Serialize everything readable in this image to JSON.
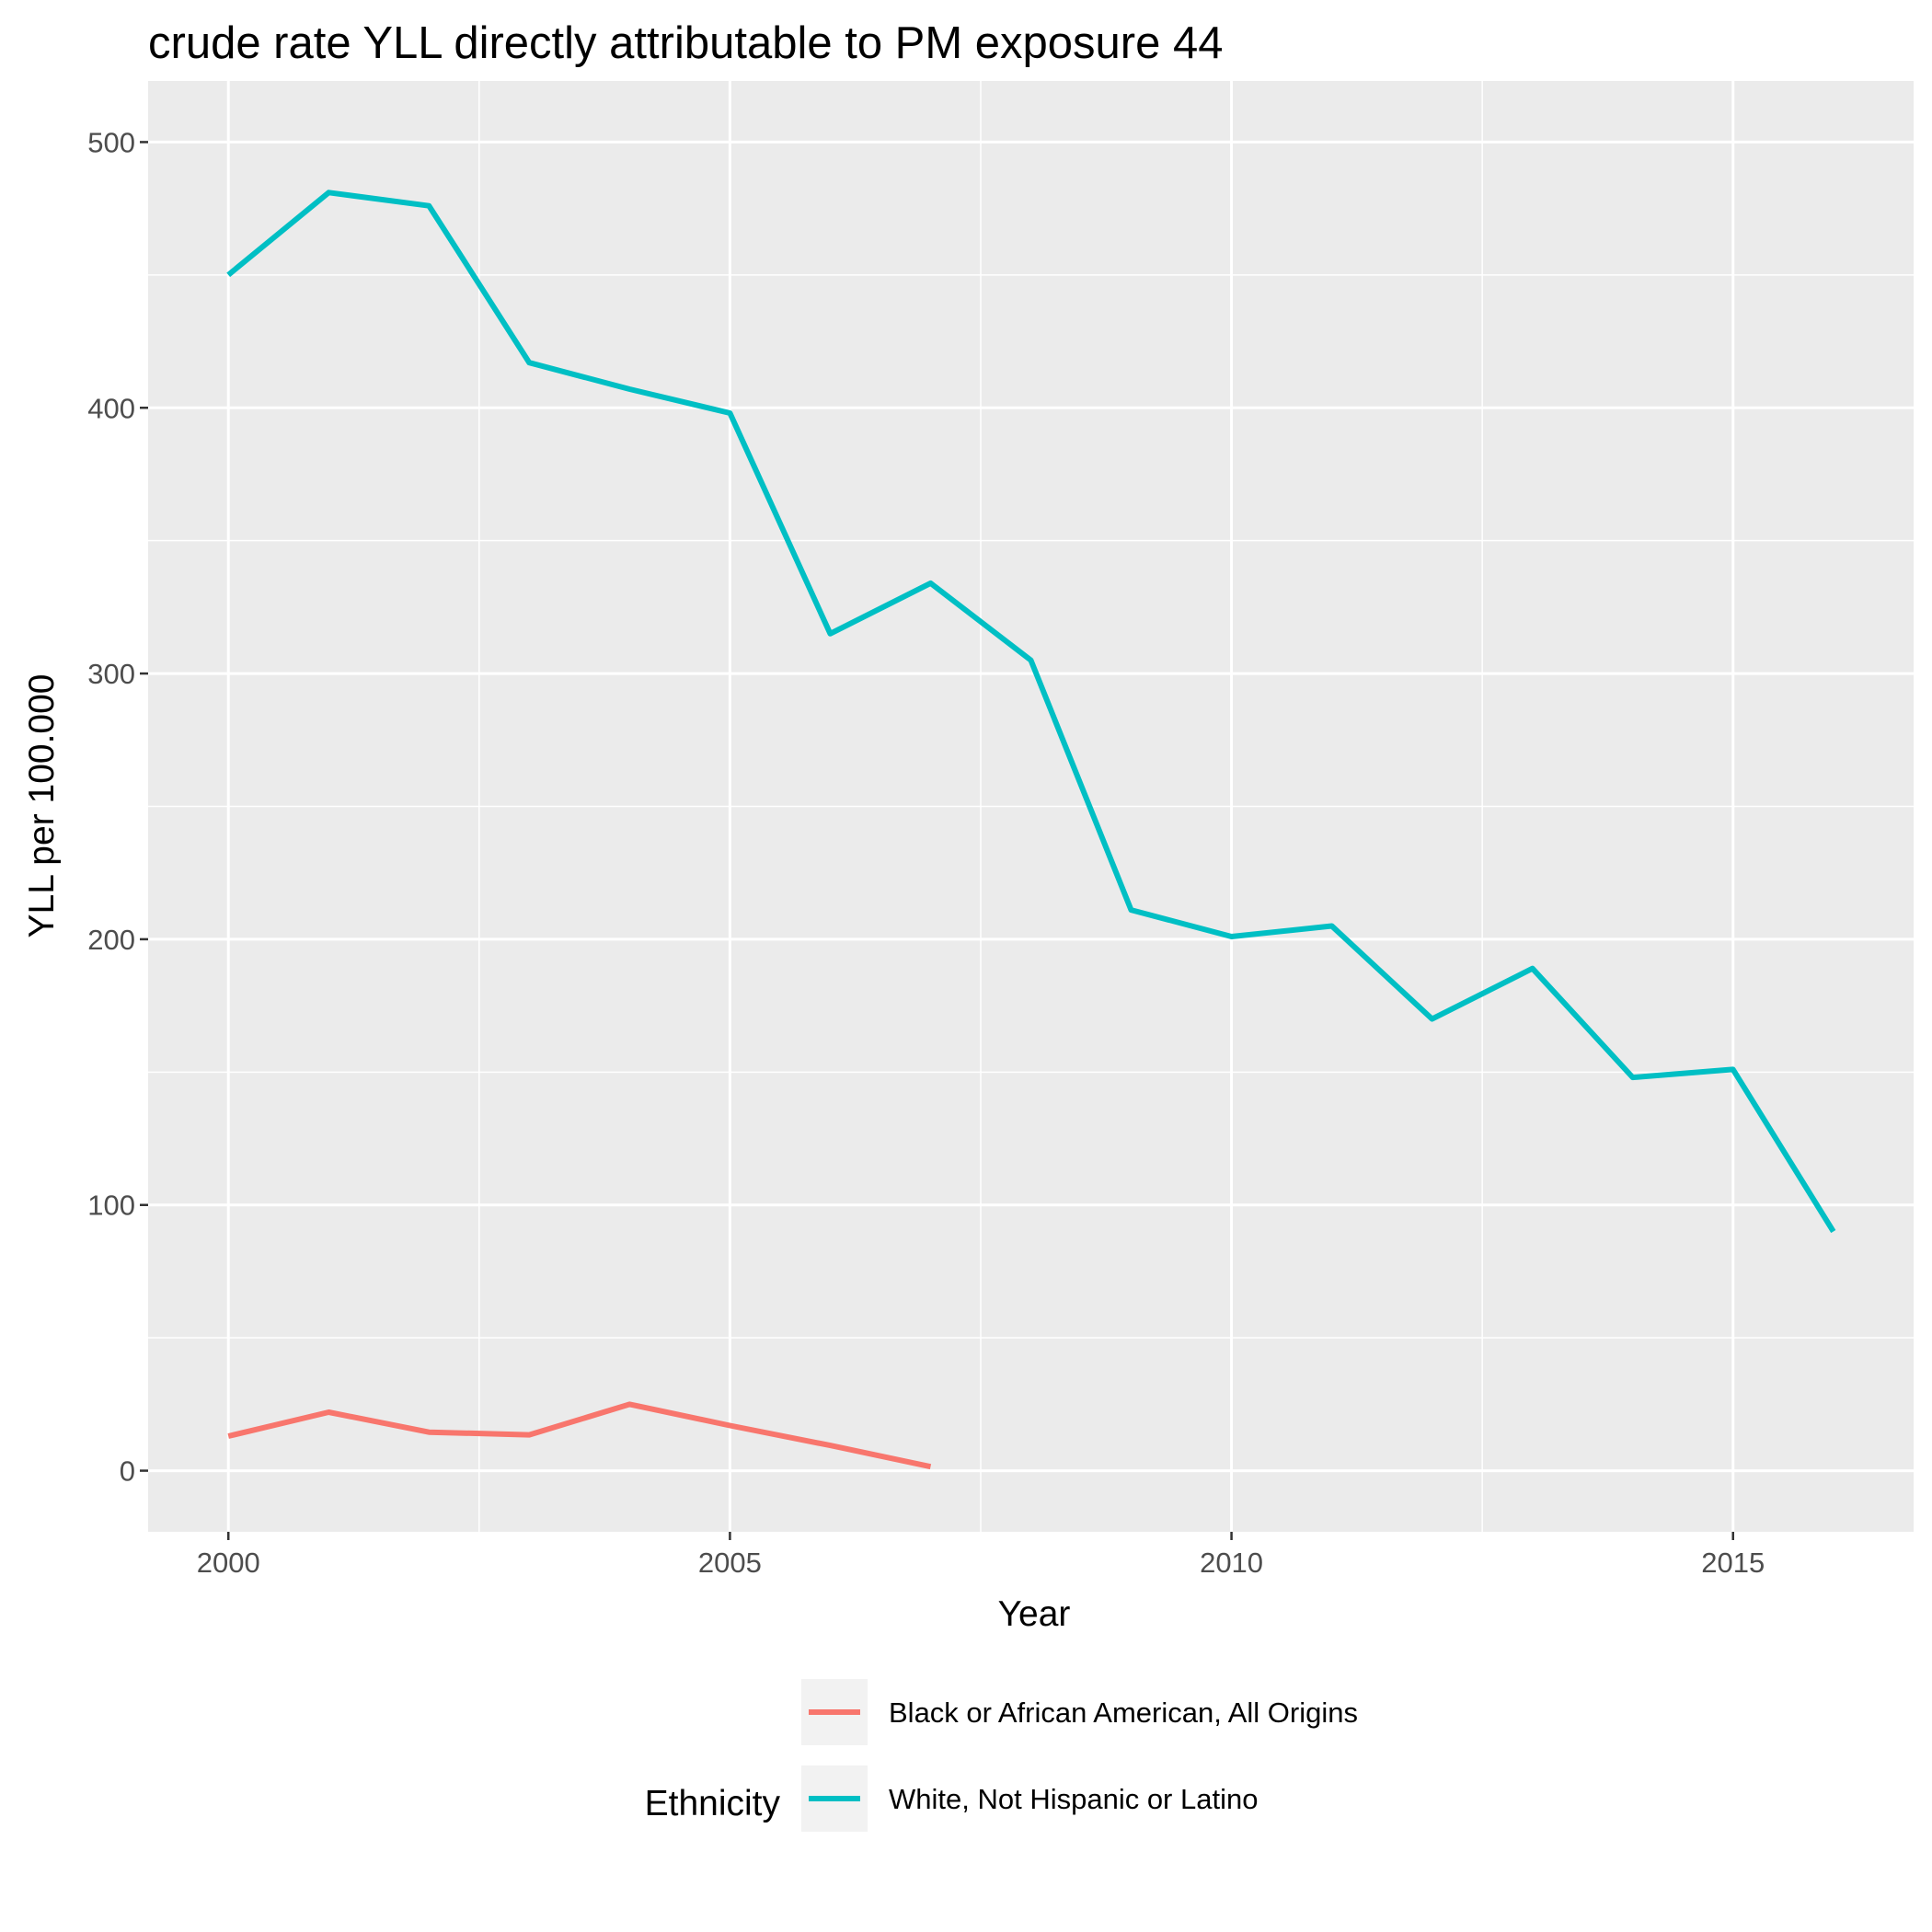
{
  "chart_data": {
    "type": "line",
    "title": "crude rate YLL directly attributable to PM exposure 44",
    "xlabel": "Year",
    "ylabel": "YLL per 100.000",
    "xlim": [
      1999.2,
      2016.8
    ],
    "ylim": [
      -23,
      523
    ],
    "x_ticks": [
      2000,
      2005,
      2010,
      2015
    ],
    "y_ticks": [
      0,
      100,
      200,
      300,
      400,
      500
    ],
    "grid": true,
    "legend": {
      "title": "Ethnicity",
      "position": "bottom"
    },
    "series": [
      {
        "name": "Black or African American, All Origins",
        "color": "#F8766D",
        "x": [
          2000,
          2001,
          2002,
          2003,
          2004,
          2005,
          2006,
          2007
        ],
        "y": [
          13,
          22,
          14.5,
          13.5,
          25,
          17,
          9.5,
          1.5
        ]
      },
      {
        "name": "White, Not Hispanic or Latino",
        "color": "#00BFC4",
        "x": [
          2000,
          2001,
          2002,
          2003,
          2004,
          2005,
          2006,
          2007,
          2008,
          2009,
          2010,
          2011,
          2012,
          2013,
          2014,
          2015,
          2016
        ],
        "y": [
          450,
          481,
          476,
          417,
          407,
          398,
          315,
          334,
          305,
          211,
          201,
          205,
          170,
          189,
          148,
          151,
          90
        ]
      }
    ]
  }
}
